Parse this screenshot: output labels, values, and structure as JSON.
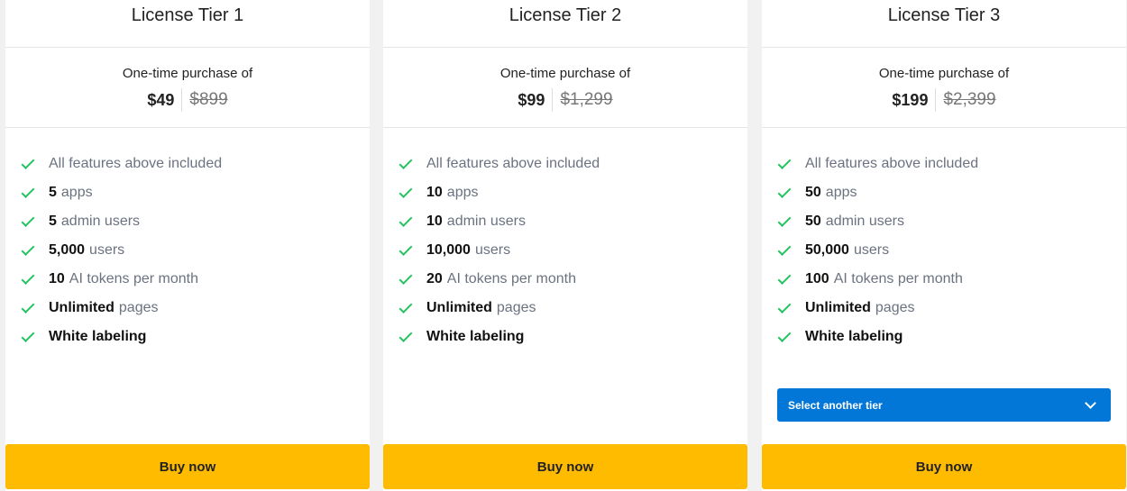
{
  "tiers": [
    {
      "title": "License Tier 1",
      "once": "One-time purchase of",
      "price": "$49",
      "old_price": "$899",
      "features": [
        [
          "",
          "All features above included"
        ],
        [
          "5",
          "apps"
        ],
        [
          "5",
          "admin users"
        ],
        [
          "5,000",
          "users"
        ],
        [
          "10",
          "AI tokens per month"
        ],
        [
          "Unlimited",
          "pages"
        ],
        [
          "White labeling",
          ""
        ]
      ],
      "buy": "Buy now"
    },
    {
      "title": "License Tier 2",
      "once": "One-time purchase of",
      "price": "$99",
      "old_price": "$1,299",
      "features": [
        [
          "",
          "All features above included"
        ],
        [
          "10",
          "apps"
        ],
        [
          "10",
          "admin users"
        ],
        [
          "10,000",
          "users"
        ],
        [
          "20",
          "AI tokens per month"
        ],
        [
          "Unlimited",
          "pages"
        ],
        [
          "White labeling",
          ""
        ]
      ],
      "buy": "Buy now"
    },
    {
      "title": "License Tier 3",
      "once": "One-time purchase of",
      "price": "$199",
      "old_price": "$2,399",
      "features": [
        [
          "",
          "All features above included"
        ],
        [
          "50",
          "apps"
        ],
        [
          "50",
          "admin users"
        ],
        [
          "50,000",
          "users"
        ],
        [
          "100",
          "AI tokens per month"
        ],
        [
          "Unlimited",
          "pages"
        ],
        [
          "White labeling",
          ""
        ]
      ],
      "buy": "Buy now",
      "select": "Select another tier"
    }
  ],
  "colors": {
    "accent": "#0277d8",
    "buy": "#ffbb00",
    "check": "#22c55e"
  }
}
